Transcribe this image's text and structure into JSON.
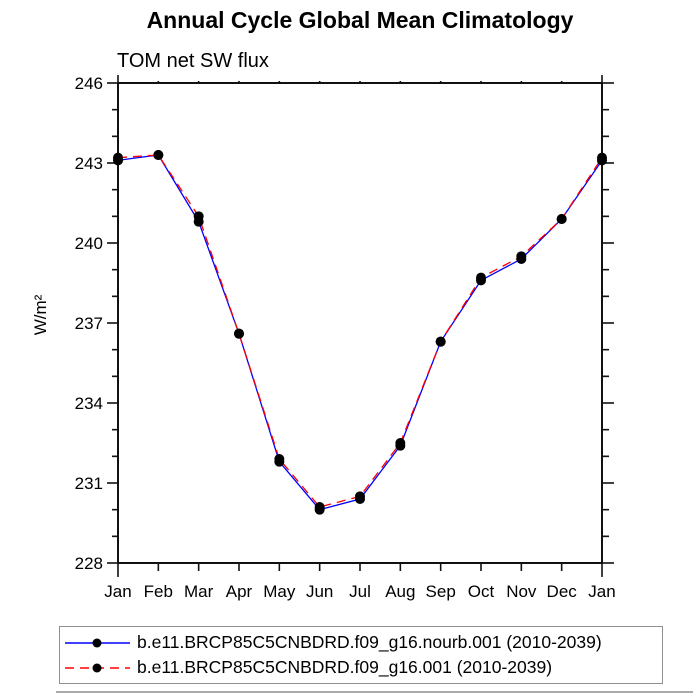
{
  "chart_data": {
    "type": "line",
    "title": "Annual Cycle Global Mean Climatology",
    "subtitle": "TOM net SW flux",
    "ylabel": "W/m²",
    "xlabel": "",
    "categories": [
      "Jan",
      "Feb",
      "Mar",
      "Apr",
      "May",
      "Jun",
      "Jul",
      "Aug",
      "Sep",
      "Oct",
      "Nov",
      "Dec",
      "Jan"
    ],
    "ylim": [
      228,
      246
    ],
    "y_major_ticks": [
      246,
      243,
      240,
      237,
      234,
      231,
      228
    ],
    "y_minor_step": 1,
    "grid": false,
    "legend_position": "bottom-left-box",
    "axis_color": "#111111",
    "marker_color": "#000000",
    "series": [
      {
        "name": "b.e11.BRCP85C5CNBDRD.f09_g16.nourb.001 (2010-2039)",
        "color": "#0000ff",
        "line_style": "solid",
        "marker": "dot",
        "values": [
          243.1,
          243.3,
          240.8,
          236.6,
          231.8,
          230.0,
          230.4,
          232.4,
          236.3,
          238.6,
          239.4,
          240.9,
          243.1
        ]
      },
      {
        "name": "b.e11.BRCP85C5CNBDRD.f09_g16.001 (2010-2039)",
        "color": "#ff0000",
        "line_style": "dashed",
        "marker": "dot",
        "values": [
          243.2,
          243.3,
          241.0,
          236.6,
          231.9,
          230.1,
          230.5,
          232.5,
          236.3,
          238.7,
          239.5,
          240.9,
          243.2
        ]
      }
    ]
  }
}
